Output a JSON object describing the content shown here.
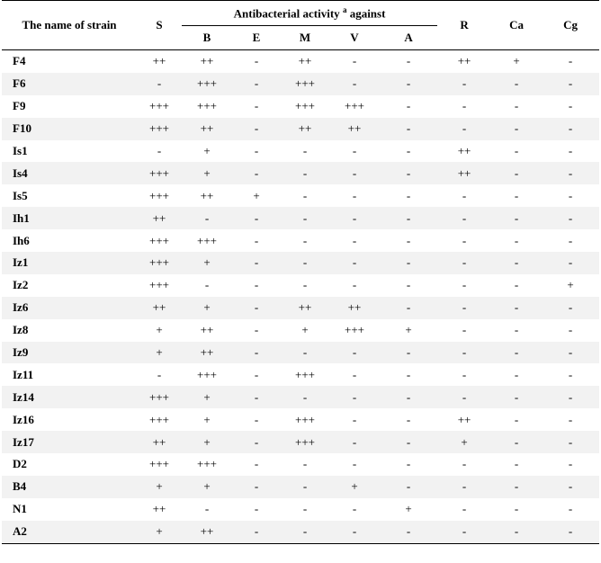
{
  "headers": {
    "strain": "The name of strain",
    "group_label": "Antibacterial activity",
    "group_sup": "a",
    "group_suffix": "against",
    "S": "S",
    "B": "B",
    "E": "E",
    "M": "M",
    "V": "V",
    "A": "A",
    "R": "R",
    "Ca": "Ca",
    "Cg": "Cg"
  },
  "rows": [
    {
      "name": "F4",
      "values": [
        "++",
        "++",
        "-",
        "++",
        "-",
        "-",
        "++",
        "+",
        "-"
      ]
    },
    {
      "name": "F6",
      "values": [
        "-",
        "+++",
        "-",
        "+++",
        "-",
        "-",
        "-",
        "-",
        "-"
      ]
    },
    {
      "name": "F9",
      "values": [
        "+++",
        "+++",
        "-",
        "+++",
        "+++",
        "-",
        "-",
        "-",
        "-"
      ]
    },
    {
      "name": "F10",
      "values": [
        "+++",
        "++",
        "-",
        "++",
        "++",
        "-",
        "-",
        "-",
        "-"
      ]
    },
    {
      "name": "Is1",
      "values": [
        "-",
        "+",
        "-",
        "-",
        "-",
        "-",
        "++",
        "-",
        "-"
      ]
    },
    {
      "name": "Is4",
      "values": [
        "+++",
        "+",
        "-",
        "-",
        "-",
        "-",
        "++",
        "-",
        "-"
      ]
    },
    {
      "name": "Is5",
      "values": [
        "+++",
        "++",
        "+",
        "-",
        "-",
        "-",
        "-",
        "-",
        "-"
      ]
    },
    {
      "name": "Ih1",
      "values": [
        "++",
        "-",
        "-",
        "-",
        "-",
        "-",
        "-",
        "-",
        "-"
      ]
    },
    {
      "name": "Ih6",
      "values": [
        "+++",
        "+++",
        "-",
        "-",
        "-",
        "-",
        "-",
        "-",
        "-"
      ]
    },
    {
      "name": "Iz1",
      "values": [
        "+++",
        "+",
        "-",
        "-",
        "-",
        "-",
        "-",
        "-",
        "-"
      ]
    },
    {
      "name": "Iz2",
      "values": [
        "+++",
        "-",
        "-",
        "-",
        "-",
        "-",
        "-",
        "-",
        "+"
      ]
    },
    {
      "name": "Iz6",
      "values": [
        "++",
        "+",
        "-",
        "++",
        "++",
        "-",
        "-",
        "-",
        "-"
      ]
    },
    {
      "name": "Iz8",
      "values": [
        "+",
        "++",
        "-",
        "+",
        "+++",
        "+",
        "-",
        "-",
        "-"
      ]
    },
    {
      "name": "Iz9",
      "values": [
        "+",
        "++",
        "-",
        "-",
        "-",
        "-",
        "-",
        "-",
        "-"
      ]
    },
    {
      "name": "Iz11",
      "values": [
        "-",
        "+++",
        "-",
        "+++",
        "-",
        "-",
        "-",
        "-",
        "-"
      ]
    },
    {
      "name": "Iz14",
      "values": [
        "+++",
        "+",
        "-",
        "-",
        "-",
        "-",
        "-",
        "-",
        "-"
      ]
    },
    {
      "name": "Iz16",
      "values": [
        "+++",
        "+",
        "-",
        "+++",
        "-",
        "-",
        "++",
        "-",
        "-"
      ]
    },
    {
      "name": "Iz17",
      "values": [
        "++",
        "+",
        "-",
        "+++",
        "-",
        "-",
        "+",
        "-",
        "-"
      ]
    },
    {
      "name": "D2",
      "values": [
        "+++",
        "+++",
        "-",
        "-",
        "-",
        "-",
        "-",
        "-",
        "-"
      ]
    },
    {
      "name": "B4",
      "values": [
        "+",
        "+",
        "-",
        "-",
        "+",
        "-",
        "-",
        "-",
        "-"
      ]
    },
    {
      "name": "N1",
      "values": [
        "++",
        "-",
        "-",
        "-",
        "-",
        "+",
        "-",
        "-",
        "-"
      ]
    },
    {
      "name": "A2",
      "values": [
        "+",
        "++",
        "-",
        "-",
        "-",
        "-",
        "-",
        "-",
        "-"
      ]
    }
  ]
}
